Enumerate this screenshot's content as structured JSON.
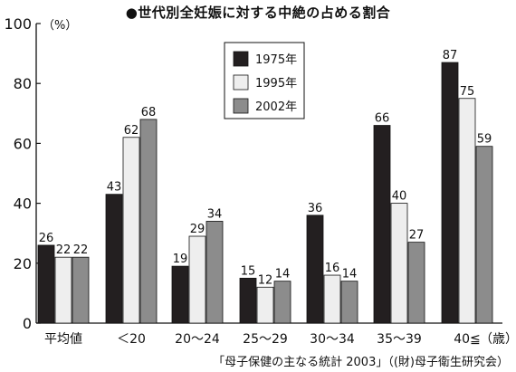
{
  "chart_data": {
    "type": "bar",
    "title": "●世代別全妊娠に対する中絶の占める割合",
    "xlabel": "（歳）",
    "ylabel": "（%）",
    "ylim": [
      0,
      100
    ],
    "yticks": [
      0,
      20,
      40,
      60,
      80,
      100
    ],
    "grid": false,
    "legend_position": "top-center",
    "categories": [
      "平均値",
      "＜20",
      "20〜24",
      "25〜29",
      "30〜34",
      "35〜39",
      "40≦"
    ],
    "series": [
      {
        "name": "1975年",
        "color": "#231f20",
        "values": [
          26,
          43,
          19,
          15,
          36,
          66,
          87
        ]
      },
      {
        "name": "1995年",
        "color": "#eeeeee",
        "values": [
          22,
          62,
          29,
          12,
          16,
          40,
          75
        ]
      },
      {
        "name": "2002年",
        "color": "#8c8c8c",
        "values": [
          22,
          68,
          34,
          14,
          14,
          27,
          59
        ]
      }
    ]
  },
  "source": "「母子保健の主なる統計 2003」（(財)母子衛生研究会）"
}
